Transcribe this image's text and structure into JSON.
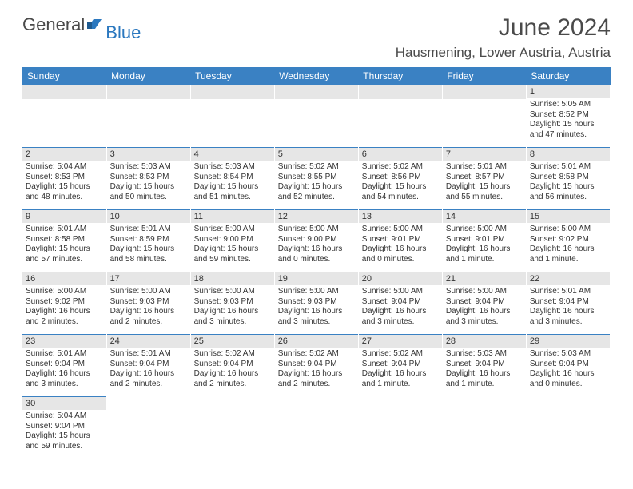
{
  "logo": {
    "text1": "General",
    "text2": "Blue",
    "color1": "#4a4a4a",
    "color2": "#2b78bf"
  },
  "title": "June 2024",
  "location": "Hausmening, Lower Austria, Austria",
  "header_bg": "#3a81c3",
  "header_fg": "#ffffff",
  "daynum_bg": "#e6e6e6",
  "border_color": "#3a81c3",
  "daynames": [
    "Sunday",
    "Monday",
    "Tuesday",
    "Wednesday",
    "Thursday",
    "Friday",
    "Saturday"
  ],
  "weeks": [
    [
      null,
      null,
      null,
      null,
      null,
      null,
      {
        "n": "1",
        "sr": "Sunrise: 5:05 AM",
        "ss": "Sunset: 8:52 PM",
        "dl": "Daylight: 15 hours and 47 minutes."
      }
    ],
    [
      {
        "n": "2",
        "sr": "Sunrise: 5:04 AM",
        "ss": "Sunset: 8:53 PM",
        "dl": "Daylight: 15 hours and 48 minutes."
      },
      {
        "n": "3",
        "sr": "Sunrise: 5:03 AM",
        "ss": "Sunset: 8:53 PM",
        "dl": "Daylight: 15 hours and 50 minutes."
      },
      {
        "n": "4",
        "sr": "Sunrise: 5:03 AM",
        "ss": "Sunset: 8:54 PM",
        "dl": "Daylight: 15 hours and 51 minutes."
      },
      {
        "n": "5",
        "sr": "Sunrise: 5:02 AM",
        "ss": "Sunset: 8:55 PM",
        "dl": "Daylight: 15 hours and 52 minutes."
      },
      {
        "n": "6",
        "sr": "Sunrise: 5:02 AM",
        "ss": "Sunset: 8:56 PM",
        "dl": "Daylight: 15 hours and 54 minutes."
      },
      {
        "n": "7",
        "sr": "Sunrise: 5:01 AM",
        "ss": "Sunset: 8:57 PM",
        "dl": "Daylight: 15 hours and 55 minutes."
      },
      {
        "n": "8",
        "sr": "Sunrise: 5:01 AM",
        "ss": "Sunset: 8:58 PM",
        "dl": "Daylight: 15 hours and 56 minutes."
      }
    ],
    [
      {
        "n": "9",
        "sr": "Sunrise: 5:01 AM",
        "ss": "Sunset: 8:58 PM",
        "dl": "Daylight: 15 hours and 57 minutes."
      },
      {
        "n": "10",
        "sr": "Sunrise: 5:01 AM",
        "ss": "Sunset: 8:59 PM",
        "dl": "Daylight: 15 hours and 58 minutes."
      },
      {
        "n": "11",
        "sr": "Sunrise: 5:00 AM",
        "ss": "Sunset: 9:00 PM",
        "dl": "Daylight: 15 hours and 59 minutes."
      },
      {
        "n": "12",
        "sr": "Sunrise: 5:00 AM",
        "ss": "Sunset: 9:00 PM",
        "dl": "Daylight: 16 hours and 0 minutes."
      },
      {
        "n": "13",
        "sr": "Sunrise: 5:00 AM",
        "ss": "Sunset: 9:01 PM",
        "dl": "Daylight: 16 hours and 0 minutes."
      },
      {
        "n": "14",
        "sr": "Sunrise: 5:00 AM",
        "ss": "Sunset: 9:01 PM",
        "dl": "Daylight: 16 hours and 1 minute."
      },
      {
        "n": "15",
        "sr": "Sunrise: 5:00 AM",
        "ss": "Sunset: 9:02 PM",
        "dl": "Daylight: 16 hours and 1 minute."
      }
    ],
    [
      {
        "n": "16",
        "sr": "Sunrise: 5:00 AM",
        "ss": "Sunset: 9:02 PM",
        "dl": "Daylight: 16 hours and 2 minutes."
      },
      {
        "n": "17",
        "sr": "Sunrise: 5:00 AM",
        "ss": "Sunset: 9:03 PM",
        "dl": "Daylight: 16 hours and 2 minutes."
      },
      {
        "n": "18",
        "sr": "Sunrise: 5:00 AM",
        "ss": "Sunset: 9:03 PM",
        "dl": "Daylight: 16 hours and 3 minutes."
      },
      {
        "n": "19",
        "sr": "Sunrise: 5:00 AM",
        "ss": "Sunset: 9:03 PM",
        "dl": "Daylight: 16 hours and 3 minutes."
      },
      {
        "n": "20",
        "sr": "Sunrise: 5:00 AM",
        "ss": "Sunset: 9:04 PM",
        "dl": "Daylight: 16 hours and 3 minutes."
      },
      {
        "n": "21",
        "sr": "Sunrise: 5:00 AM",
        "ss": "Sunset: 9:04 PM",
        "dl": "Daylight: 16 hours and 3 minutes."
      },
      {
        "n": "22",
        "sr": "Sunrise: 5:01 AM",
        "ss": "Sunset: 9:04 PM",
        "dl": "Daylight: 16 hours and 3 minutes."
      }
    ],
    [
      {
        "n": "23",
        "sr": "Sunrise: 5:01 AM",
        "ss": "Sunset: 9:04 PM",
        "dl": "Daylight: 16 hours and 3 minutes."
      },
      {
        "n": "24",
        "sr": "Sunrise: 5:01 AM",
        "ss": "Sunset: 9:04 PM",
        "dl": "Daylight: 16 hours and 2 minutes."
      },
      {
        "n": "25",
        "sr": "Sunrise: 5:02 AM",
        "ss": "Sunset: 9:04 PM",
        "dl": "Daylight: 16 hours and 2 minutes."
      },
      {
        "n": "26",
        "sr": "Sunrise: 5:02 AM",
        "ss": "Sunset: 9:04 PM",
        "dl": "Daylight: 16 hours and 2 minutes."
      },
      {
        "n": "27",
        "sr": "Sunrise: 5:02 AM",
        "ss": "Sunset: 9:04 PM",
        "dl": "Daylight: 16 hours and 1 minute."
      },
      {
        "n": "28",
        "sr": "Sunrise: 5:03 AM",
        "ss": "Sunset: 9:04 PM",
        "dl": "Daylight: 16 hours and 1 minute."
      },
      {
        "n": "29",
        "sr": "Sunrise: 5:03 AM",
        "ss": "Sunset: 9:04 PM",
        "dl": "Daylight: 16 hours and 0 minutes."
      }
    ],
    [
      {
        "n": "30",
        "sr": "Sunrise: 5:04 AM",
        "ss": "Sunset: 9:04 PM",
        "dl": "Daylight: 15 hours and 59 minutes."
      },
      null,
      null,
      null,
      null,
      null,
      null
    ]
  ]
}
